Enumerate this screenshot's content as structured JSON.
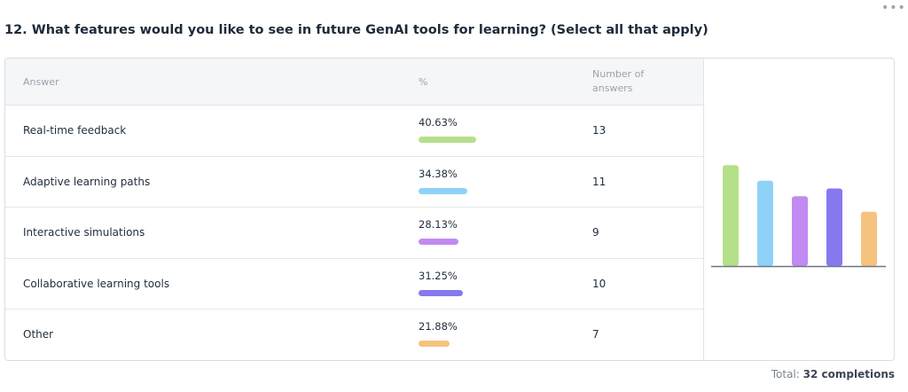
{
  "question": {
    "title": "12. What features would you like to see in future GenAI tools for learning? (Select all that apply)"
  },
  "menu_icon": "more-horizontal-icon",
  "table": {
    "headers": {
      "answer": "Answer",
      "percent": "%",
      "count": "Number of answers"
    },
    "rows": [
      {
        "answer": "Real-time feedback",
        "percent_label": "40.63%",
        "percent": 40.63,
        "count": "13",
        "color": "#b5e08a"
      },
      {
        "answer": "Adaptive learning paths",
        "percent_label": "34.38%",
        "percent": 34.38,
        "count": "11",
        "color": "#8fd2f7"
      },
      {
        "answer": "Interactive simulations",
        "percent_label": "28.13%",
        "percent": 28.13,
        "count": "9",
        "color": "#c18bf2"
      },
      {
        "answer": "Collaborative learning tools",
        "percent_label": "31.25%",
        "percent": 31.25,
        "count": "10",
        "color": "#8679f0"
      },
      {
        "answer": "Other",
        "percent_label": "21.88%",
        "percent": 21.88,
        "count": "7",
        "color": "#f6c37f"
      }
    ]
  },
  "chart_data": {
    "type": "bar",
    "categories": [
      "Real-time feedback",
      "Adaptive learning paths",
      "Interactive simulations",
      "Collaborative learning tools",
      "Other"
    ],
    "values": [
      40.63,
      34.38,
      28.13,
      31.25,
      21.88
    ],
    "colors": [
      "#b5e08a",
      "#8fd2f7",
      "#c18bf2",
      "#8679f0",
      "#f6c37f"
    ],
    "ylim": [
      0,
      50
    ],
    "grid": false,
    "legend": "none"
  },
  "footer": {
    "total_prefix": "Total:",
    "total_value": "32 completions"
  }
}
